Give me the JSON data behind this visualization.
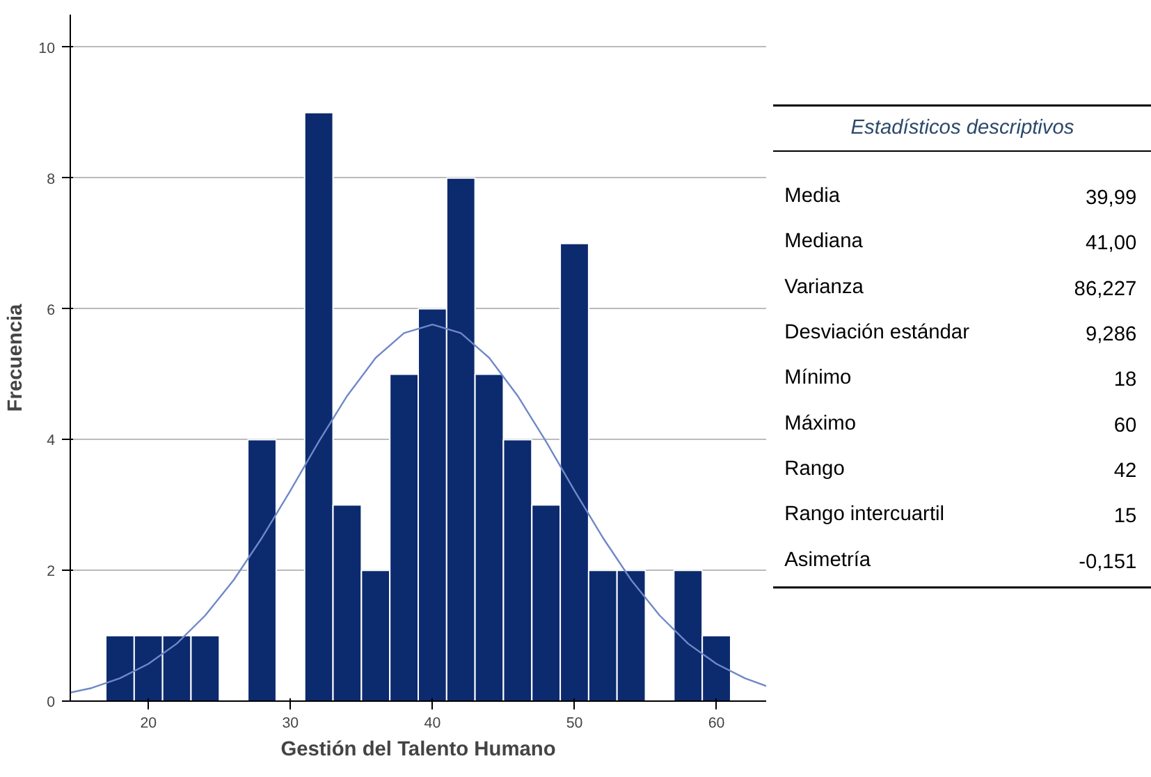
{
  "chart_data": [
    {
      "type": "histogram",
      "xlabel": "Gestión del Talento Humano",
      "ylabel": "Frecuencia",
      "bins": [
        17,
        19,
        21,
        23,
        25,
        27,
        29,
        31,
        33,
        35,
        37,
        39,
        41,
        43,
        45,
        47,
        49,
        51,
        53,
        55,
        57,
        59,
        61
      ],
      "values": [
        1,
        1,
        1,
        1,
        0,
        4,
        0,
        9,
        3,
        2,
        5,
        6,
        8,
        5,
        4,
        3,
        7,
        2,
        2,
        0,
        2,
        1
      ],
      "color": "#0c2a6e",
      "series": [
        {
          "type": "line",
          "color": "#6f88c8",
          "x": [
            14.5,
            16,
            18,
            20,
            22,
            24,
            26,
            28,
            30,
            32,
            34,
            36,
            38,
            40,
            42,
            44,
            46,
            48,
            50,
            52,
            54,
            56,
            58,
            60,
            62,
            63.5
          ],
          "values": [
            0.13,
            0.2,
            0.35,
            0.57,
            0.88,
            1.31,
            1.85,
            2.5,
            3.22,
            3.97,
            4.67,
            5.25,
            5.63,
            5.76,
            5.63,
            5.25,
            4.67,
            3.97,
            3.22,
            2.5,
            1.85,
            1.31,
            0.88,
            0.57,
            0.35,
            0.23
          ]
        }
      ],
      "xlim": [
        14.5,
        63.5
      ],
      "ylim": [
        0,
        10.5
      ],
      "xticks": [
        20,
        30,
        40,
        50,
        60
      ],
      "yticks": [
        0,
        2,
        4,
        6,
        8,
        10
      ],
      "grid": "y"
    },
    {
      "type": "other",
      "title": "Estadísticos descriptivos",
      "categories": [
        "Media",
        "Mediana",
        "Varianza",
        "Desviación estándar",
        "Mínimo",
        "Máximo",
        "Rango",
        "Rango intercuartil",
        "Asimetría"
      ],
      "value_labels": [
        "39,99",
        "41,00",
        "86,227",
        "9,286",
        "18",
        "60",
        "42",
        "15",
        "-0,151"
      ]
    }
  ]
}
